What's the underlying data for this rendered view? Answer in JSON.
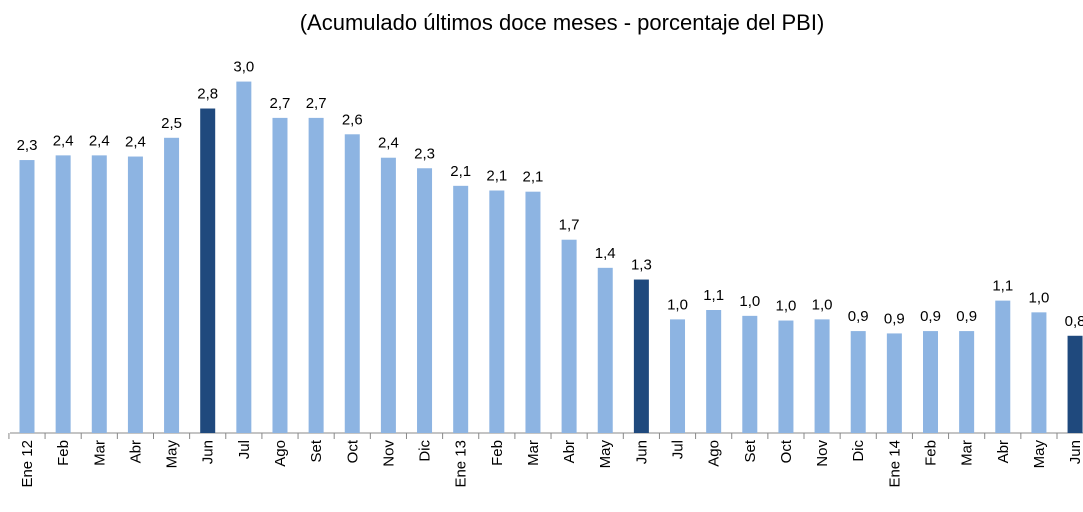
{
  "chart_data": {
    "type": "bar",
    "title": "(Acumulado últimos doce meses - porcentaje del PBI)",
    "categories": [
      "Ene 12",
      "Feb",
      "Mar",
      "Abr",
      "May",
      "Jun",
      "Jul",
      "Ago",
      "Set",
      "Oct",
      "Nov",
      "Dic",
      "Ene 13",
      "Feb",
      "Mar",
      "Abr",
      "May",
      "Jun",
      "Jul",
      "Ago",
      "Set",
      "Oct",
      "Nov",
      "Dic",
      "Ene 14",
      "Feb",
      "Mar",
      "Abr",
      "May",
      "Jun"
    ],
    "values": [
      2.33,
      2.37,
      2.37,
      2.36,
      2.52,
      2.77,
      3.0,
      2.69,
      2.69,
      2.55,
      2.35,
      2.26,
      2.11,
      2.07,
      2.06,
      1.65,
      1.41,
      1.31,
      0.97,
      1.05,
      1.0,
      0.96,
      0.97,
      0.87,
      0.85,
      0.87,
      0.87,
      1.13,
      1.03,
      0.83
    ],
    "value_labels": [
      "2,3",
      "2,4",
      "2,4",
      "2,4",
      "2,5",
      "2,8",
      "3,0",
      "2,7",
      "2,7",
      "2,6",
      "2,4",
      "2,3",
      "2,1",
      "2,1",
      "2,1",
      "1,7",
      "1,4",
      "1,3",
      "1,0",
      "1,1",
      "1,0",
      "1,0",
      "1,0",
      "0,9",
      "0,9",
      "0,9",
      "0,9",
      "1,1",
      "1,0",
      "0,8"
    ],
    "colors": [
      "#8db4e2",
      "#8db4e2",
      "#8db4e2",
      "#8db4e2",
      "#8db4e2",
      "#1f497d",
      "#8db4e2",
      "#8db4e2",
      "#8db4e2",
      "#8db4e2",
      "#8db4e2",
      "#8db4e2",
      "#8db4e2",
      "#8db4e2",
      "#8db4e2",
      "#8db4e2",
      "#8db4e2",
      "#1f497d",
      "#8db4e2",
      "#8db4e2",
      "#8db4e2",
      "#8db4e2",
      "#8db4e2",
      "#8db4e2",
      "#8db4e2",
      "#8db4e2",
      "#8db4e2",
      "#8db4e2",
      "#8db4e2",
      "#1f497d"
    ],
    "ylim": [
      0,
      3.5
    ]
  }
}
